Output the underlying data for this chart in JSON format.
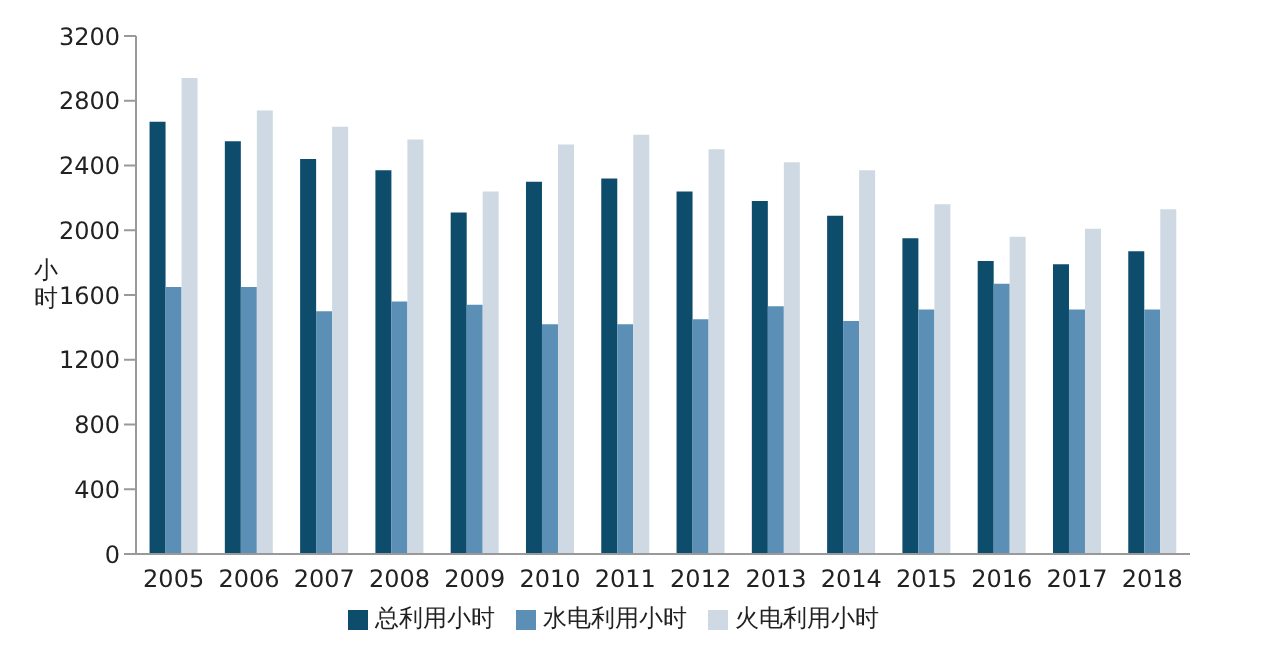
{
  "chart_data": {
    "type": "bar",
    "ylabel": "小时",
    "categories": [
      "2005",
      "2006",
      "2007",
      "2008",
      "2009",
      "2010",
      "2011",
      "2012",
      "2013",
      "2014",
      "2015",
      "2016",
      "2017",
      "2018"
    ],
    "series": [
      {
        "name": "总利用小时",
        "color": "#0e4c6c",
        "values": [
          2670,
          2550,
          2440,
          2370,
          2110,
          2300,
          2320,
          2240,
          2180,
          2090,
          1950,
          1810,
          1790,
          1870
        ]
      },
      {
        "name": "水电利用小时",
        "color": "#5b8fb6",
        "values": [
          1650,
          1650,
          1500,
          1560,
          1540,
          1420,
          1420,
          1450,
          1530,
          1440,
          1510,
          1670,
          1510,
          1510
        ]
      },
      {
        "name": "火电利用小时",
        "color": "#cfd9e3",
        "values": [
          2940,
          2740,
          2640,
          2560,
          2240,
          2530,
          2590,
          2500,
          2420,
          2370,
          2160,
          1960,
          2010,
          2130
        ]
      }
    ],
    "ylim": [
      0,
      3200
    ],
    "yticks": [
      0,
      400,
      800,
      1200,
      1600,
      2000,
      2400,
      2800,
      3200
    ],
    "grid": false,
    "legend": "bottom"
  }
}
